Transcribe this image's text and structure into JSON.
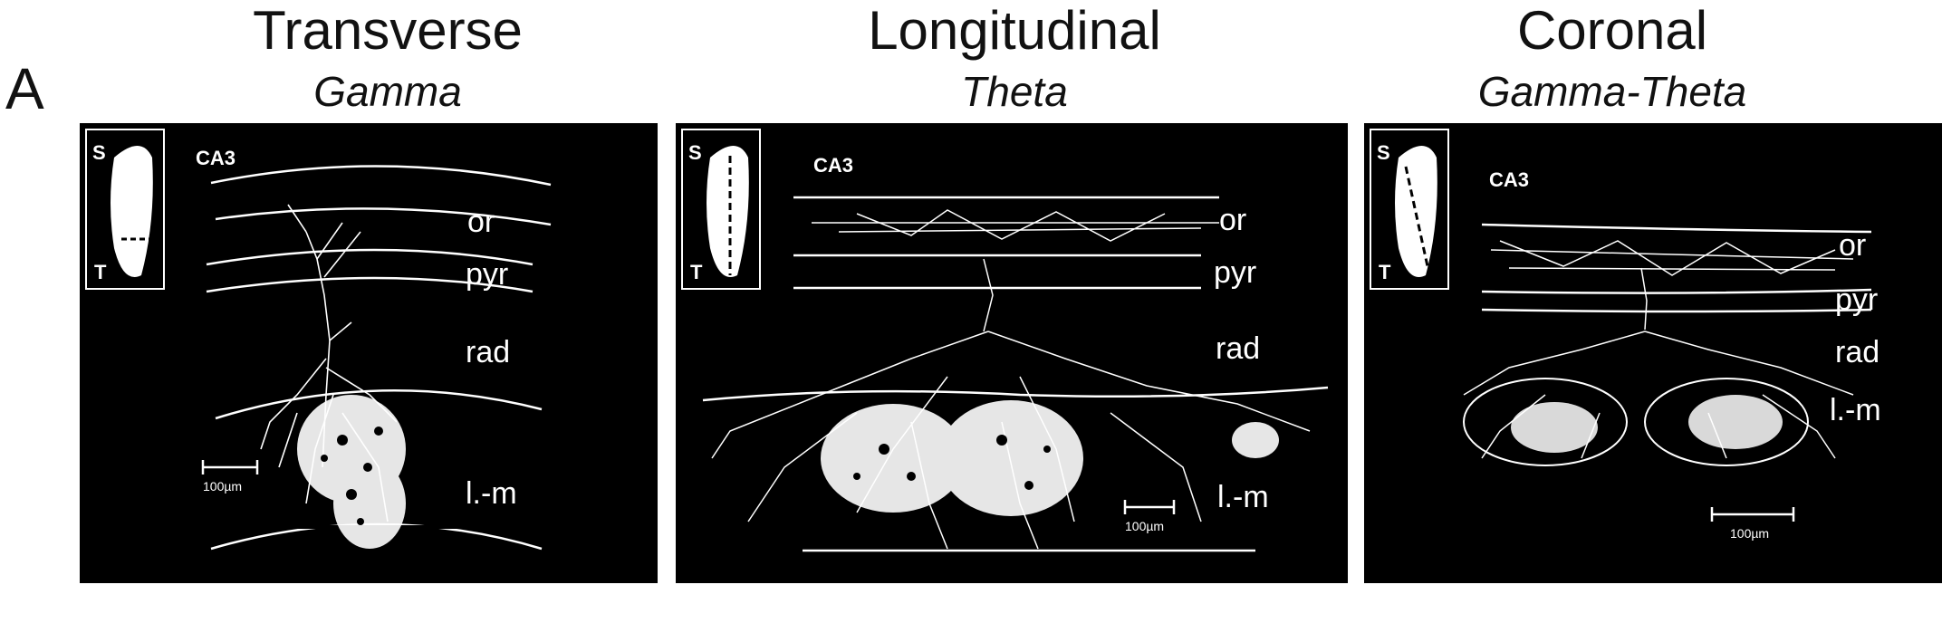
{
  "panel_letter": "A",
  "panels": [
    {
      "title": "Transverse",
      "subtitle": "Gamma",
      "region_label": "CA3",
      "inset": {
        "top": "S",
        "bottom": "T"
      },
      "layers": [
        "or",
        "pyr",
        "rad",
        "l.-m"
      ],
      "scale_bar": "100µm"
    },
    {
      "title": "Longitudinal",
      "subtitle": "Theta",
      "region_label": "CA3",
      "inset": {
        "top": "S",
        "bottom": "T"
      },
      "layers": [
        "or",
        "pyr",
        "rad",
        "l.-m"
      ],
      "scale_bar": "100µm"
    },
    {
      "title": "Coronal",
      "subtitle": "Gamma-Theta",
      "region_label": "CA3",
      "inset": {
        "top": "S",
        "bottom": "T"
      },
      "layers": [
        "or",
        "pyr",
        "rad",
        "l.-m"
      ],
      "scale_bar": "100µm"
    }
  ],
  "colors": {
    "background": "#ffffff",
    "panel": "#000000",
    "ink": "#ffffff",
    "text": "#111111"
  }
}
